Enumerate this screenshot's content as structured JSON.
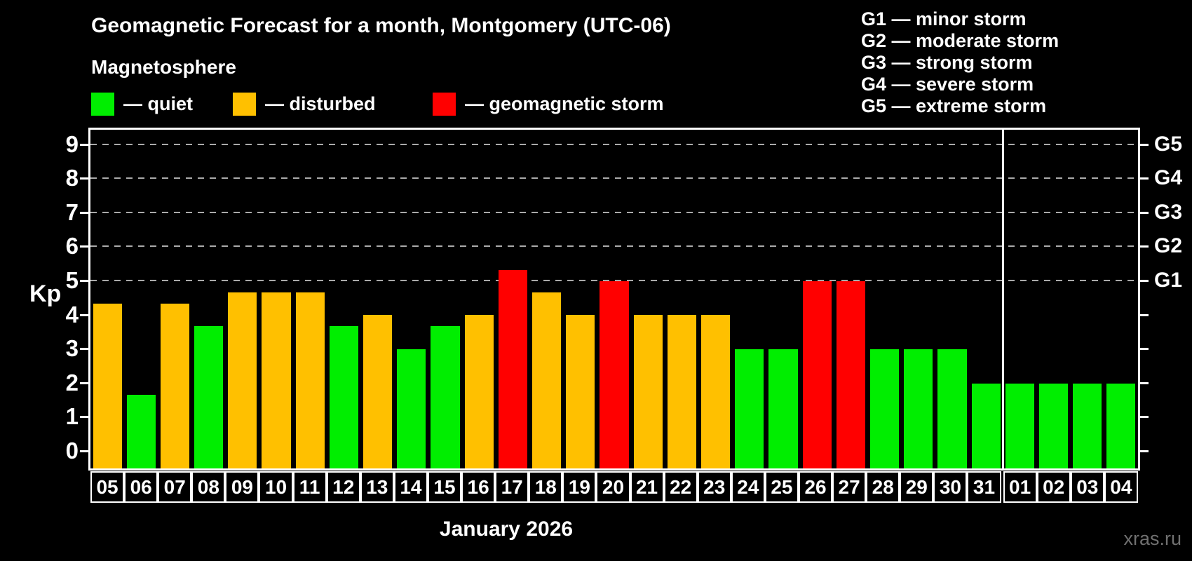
{
  "title": "Geomagnetic Forecast for a month, Montgomery (UTC-06)",
  "subtitle": "Magnetosphere",
  "legend": {
    "items": [
      {
        "key": "quiet",
        "label": "— quiet",
        "color": "#00ee00",
        "x": 0
      },
      {
        "key": "disturbed",
        "label": "— disturbed",
        "color": "#ffc000",
        "x": 202
      },
      {
        "key": "storm",
        "label": "— geomagnetic storm",
        "color": "#ff0000",
        "x": 487
      }
    ]
  },
  "g_scale_legend": [
    "G1 — minor storm",
    "G2 — moderate storm",
    "G3 — strong storm",
    "G4 — severe storm",
    "G5 — extreme storm"
  ],
  "y_axis": {
    "label": "Kp",
    "ticks": [
      0,
      1,
      2,
      3,
      4,
      5,
      6,
      7,
      8,
      9
    ]
  },
  "right_axis": {
    "ticks": [
      0,
      1,
      2,
      3,
      4,
      5,
      6,
      7,
      8,
      9
    ],
    "labels": [
      {
        "label": "G1",
        "value": 5
      },
      {
        "label": "G2",
        "value": 6
      },
      {
        "label": "G3",
        "value": 7
      },
      {
        "label": "G4",
        "value": 8
      },
      {
        "label": "G5",
        "value": 9
      }
    ]
  },
  "x_axis": {
    "month_label": "January 2026"
  },
  "watermark": "xras.ru",
  "chart_data": {
    "type": "bar",
    "title": "Geomagnetic Forecast for a month, Montgomery (UTC-06)",
    "categories": [
      "05",
      "06",
      "07",
      "08",
      "09",
      "10",
      "11",
      "12",
      "13",
      "14",
      "15",
      "16",
      "17",
      "18",
      "19",
      "20",
      "21",
      "22",
      "23",
      "24",
      "25",
      "26",
      "27",
      "28",
      "29",
      "30",
      "31",
      "01",
      "02",
      "03",
      "04"
    ],
    "values": [
      4.33,
      1.67,
      4.33,
      3.67,
      4.67,
      4.67,
      4.67,
      3.67,
      4,
      3,
      3.67,
      4,
      5.33,
      4.67,
      4,
      5,
      4,
      4,
      4,
      3,
      3,
      5,
      5,
      3,
      3,
      3,
      2,
      2,
      2,
      2,
      2
    ],
    "statuses": [
      "disturbed",
      "quiet",
      "disturbed",
      "quiet",
      "disturbed",
      "disturbed",
      "disturbed",
      "quiet",
      "disturbed",
      "quiet",
      "quiet",
      "disturbed",
      "storm",
      "disturbed",
      "disturbed",
      "storm",
      "disturbed",
      "disturbed",
      "disturbed",
      "quiet",
      "quiet",
      "storm",
      "storm",
      "quiet",
      "quiet",
      "quiet",
      "quiet",
      "quiet",
      "quiet",
      "quiet",
      "quiet"
    ],
    "ylabel": "Kp",
    "ylim": [
      0,
      9
    ],
    "plot_value_range": [
      -0.5,
      9.4
    ],
    "gridlines_at": [
      5,
      6,
      7,
      8,
      9
    ],
    "grid_style": "dashed",
    "legend_position": "top",
    "month_boundary_after_index": 26
  }
}
